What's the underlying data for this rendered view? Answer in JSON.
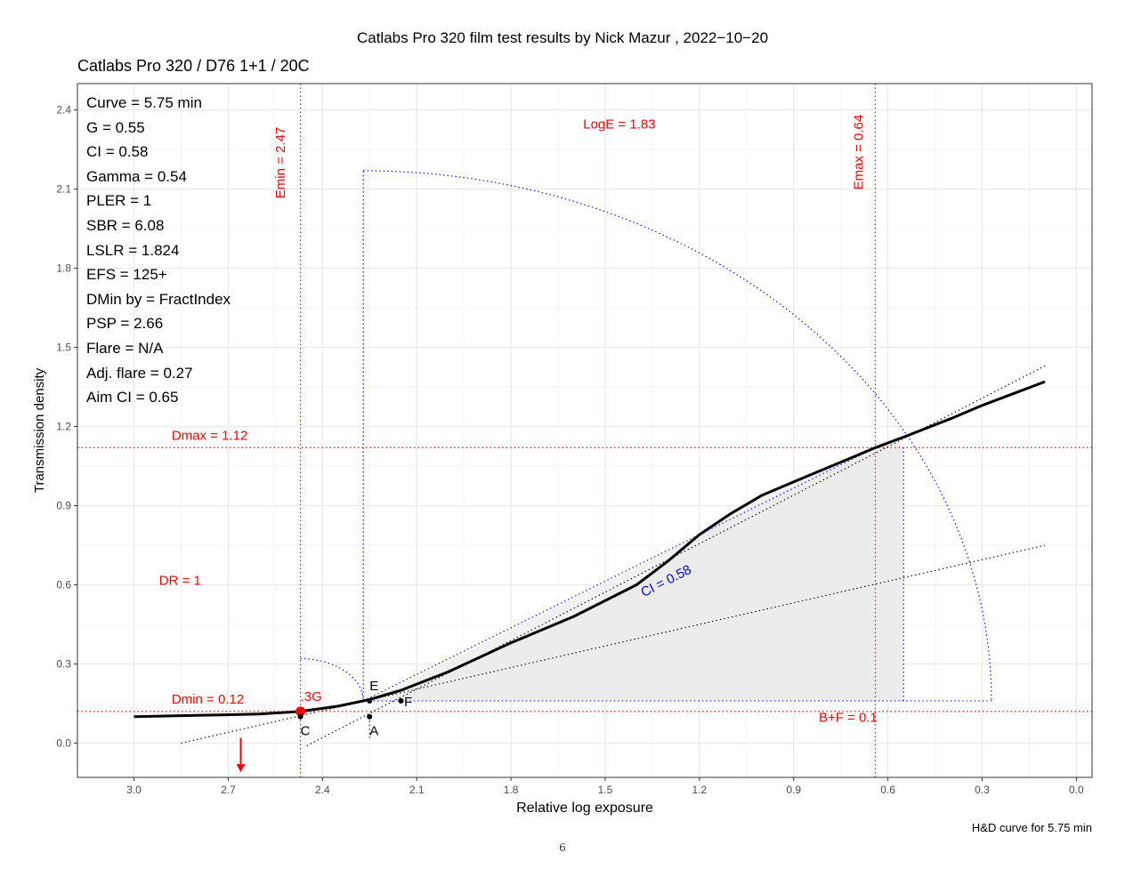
{
  "page": {
    "title": "Catlabs Pro 320 film test results by Nick Mazur , 2022−10−20",
    "subtitle": "Catlabs Pro 320 / D76 1+1 / 20C",
    "caption": "H&D curve for 5.75 min",
    "page_number": "6"
  },
  "stats": [
    "Curve =  5.75 min",
    "G =  0.55",
    "CI =  0.58",
    "Gamma =  0.54",
    "PLER =  1",
    "SBR =  6.08",
    "LSLR =  1.824",
    "EFS = 125+",
    "DMin by = FractIndex",
    "PSP = 2.66",
    "Flare = N/A",
    "Adj. flare = 0.27",
    "Aim CI =  0.65"
  ],
  "colors": {
    "curve": "#000000",
    "reference_lines": "#ff0000",
    "construction_lines": "#0000ff",
    "fill": "#f2f2f2",
    "panel_border": "#333333",
    "grid": "#ebebeb"
  },
  "chart_data": {
    "type": "line",
    "title": "Catlabs Pro 320 / D76 1+1 / 20C",
    "xlabel": "Relative log exposure",
    "ylabel": "Transmission density",
    "x_reversed": true,
    "xlim": [
      3.18,
      -0.05
    ],
    "ylim": [
      -0.13,
      2.5
    ],
    "xticks": [
      "3.0",
      "2.7",
      "2.4",
      "2.1",
      "1.8",
      "1.5",
      "1.2",
      "0.9",
      "0.6",
      "0.3",
      "0.0"
    ],
    "xtick_values": [
      3.0,
      2.7,
      2.4,
      2.1,
      1.8,
      1.5,
      1.2,
      0.9,
      0.6,
      0.3,
      0.0
    ],
    "yticks": [
      "0.0",
      "0.3",
      "0.6",
      "0.9",
      "1.2",
      "1.5",
      "1.8",
      "2.1",
      "2.4"
    ],
    "ytick_values": [
      0.0,
      0.3,
      0.6,
      0.9,
      1.2,
      1.5,
      1.8,
      2.1,
      2.4
    ],
    "grid": true,
    "series": [
      {
        "x": [
          3.0,
          2.8,
          2.6,
          2.47,
          2.35,
          2.25,
          2.15,
          2.0,
          1.8,
          1.6,
          1.4,
          1.3,
          1.2,
          1.1,
          1.0,
          0.9,
          0.8,
          0.7,
          0.64,
          0.55,
          0.4,
          0.3,
          0.1
        ],
        "y": [
          0.1,
          0.105,
          0.11,
          0.12,
          0.14,
          0.165,
          0.2,
          0.27,
          0.38,
          0.48,
          0.6,
          0.69,
          0.79,
          0.87,
          0.94,
          0.99,
          1.04,
          1.09,
          1.12,
          1.16,
          1.23,
          1.28,
          1.37
        ]
      }
    ],
    "reference_lines": {
      "Emin_x": 2.47,
      "Emax_x": 0.64,
      "Dmin_y": 0.12,
      "Dmax_y": 1.12
    },
    "annotations": [
      {
        "text": "Emin = 2.47",
        "x": 2.52,
        "y": 2.2,
        "rotate": true,
        "color": "red"
      },
      {
        "text": "Emax = 0.64",
        "x": 0.68,
        "y": 2.24,
        "rotate": true,
        "color": "red"
      },
      {
        "text": "LogE =  1.83",
        "x": 1.57,
        "y": 2.33,
        "color": "red"
      },
      {
        "text": "Dmax = 1.12",
        "x": 2.88,
        "y": 1.15,
        "color": "red"
      },
      {
        "text": "Dmin = 0.12",
        "x": 2.88,
        "y": 0.15,
        "color": "red"
      },
      {
        "text": "DR = 1",
        "x": 2.92,
        "y": 0.6,
        "color": "red"
      },
      {
        "text": "B+F =  0.1",
        "x": 0.82,
        "y": 0.08,
        "color": "red"
      },
      {
        "text": ".3G",
        "x": 2.47,
        "y": 0.16,
        "color": "red"
      },
      {
        "text": "CI = 0.58",
        "x": 1.3,
        "y": 0.6,
        "rotate_deg": -27,
        "color": "blue"
      },
      {
        "text": "E",
        "x": 2.25,
        "y": 0.2,
        "color": "black"
      },
      {
        "text": "F",
        "x": 2.14,
        "y": 0.14,
        "color": "black"
      },
      {
        "text": "C",
        "x": 2.47,
        "y": 0.03,
        "color": "black"
      },
      {
        "text": "A",
        "x": 2.25,
        "y": 0.03,
        "color": "black"
      }
    ],
    "points": [
      {
        "name": "3G",
        "x": 2.47,
        "y": 0.12,
        "color": "red"
      },
      {
        "name": "E",
        "x": 2.25,
        "y": 0.16,
        "color": "black"
      },
      {
        "name": "F",
        "x": 2.15,
        "y": 0.16,
        "color": "black"
      },
      {
        "name": "C",
        "x": 2.47,
        "y": 0.1,
        "color": "black"
      },
      {
        "name": "A",
        "x": 2.25,
        "y": 0.1,
        "color": "black"
      }
    ],
    "arrow_x": 2.66,
    "legend": "none"
  }
}
